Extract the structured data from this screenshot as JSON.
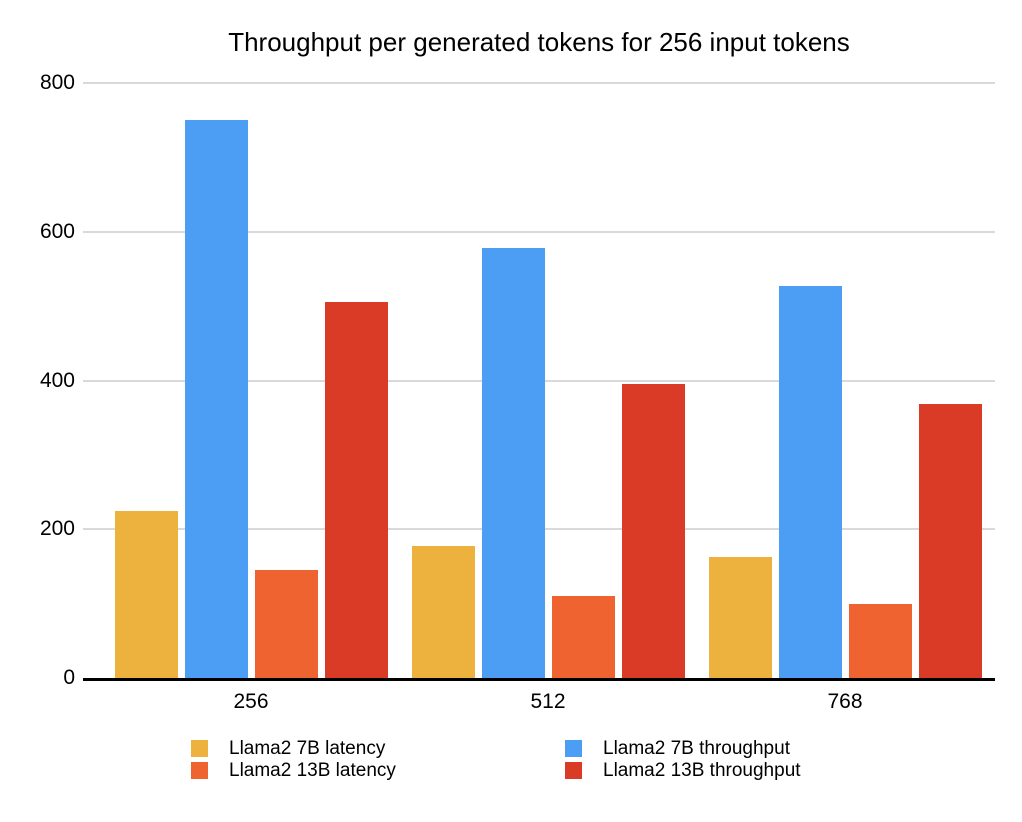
{
  "title": "Throughput per generated tokens for 256 input tokens",
  "chart_data": {
    "type": "bar",
    "title": "Throughput per generated tokens for 256 input tokens",
    "categories": [
      "256",
      "512",
      "768"
    ],
    "series": [
      {
        "name": "Llama2 7B latency",
        "color": "#ECB23D",
        "values": [
          225,
          178,
          163
        ]
      },
      {
        "name": "Llama2 7B throughput",
        "color": "#4B9EF3",
        "values": [
          750,
          578,
          527
        ]
      },
      {
        "name": "Llama2 13B latency",
        "color": "#EE6330",
        "values": [
          145,
          110,
          99
        ]
      },
      {
        "name": "Llama2 13B throughput",
        "color": "#D93B26",
        "values": [
          505,
          395,
          368
        ]
      }
    ],
    "xlabel": "",
    "ylabel": "",
    "ylim": [
      0,
      800
    ],
    "yticks": [
      0,
      200,
      400,
      600,
      800
    ],
    "grid": true,
    "legend_position": "bottom",
    "legend_columns": [
      [
        "Llama2 7B latency",
        "Llama2 13B latency"
      ],
      [
        "Llama2 7B throughput",
        "Llama2 13B throughput"
      ]
    ]
  },
  "colors": {
    "background": "#FFFFFF",
    "gridline": "#D9D9D9",
    "axis": "#000000",
    "text": "#000000"
  }
}
